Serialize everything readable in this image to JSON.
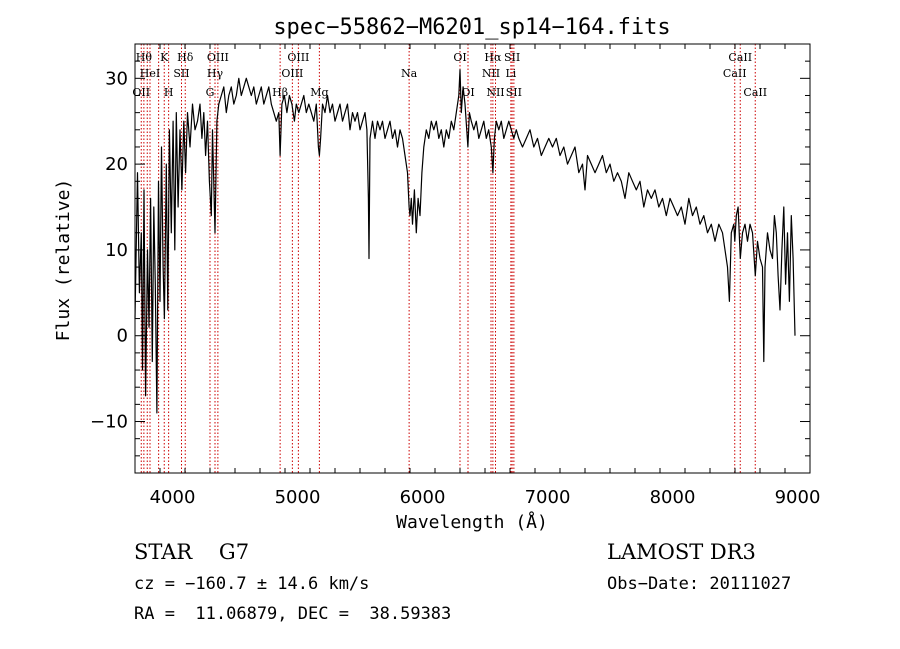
{
  "chart_data": {
    "type": "line",
    "title": "spec−55862−M6201_sp14−164.fits",
    "xlabel": "Wavelength (Å)",
    "ylabel": "Flux (relative)",
    "xlim": [
      3700,
      9100
    ],
    "ylim": [
      -16,
      34
    ],
    "xticks": [
      4000,
      5000,
      6000,
      7000,
      8000,
      9000
    ],
    "xtick_labels": [
      "4000",
      "5000",
      "6000",
      "7000",
      "8000",
      "9000"
    ],
    "yticks": [
      -10,
      0,
      10,
      20,
      30
    ],
    "ytick_labels": [
      "−10",
      "0",
      "10",
      "20",
      "30"
    ],
    "series": [
      {
        "name": "flux",
        "points": [
          [
            3700,
            2
          ],
          [
            3720,
            19
          ],
          [
            3735,
            5
          ],
          [
            3750,
            12
          ],
          [
            3760,
            -4
          ],
          [
            3772,
            17
          ],
          [
            3785,
            -7
          ],
          [
            3800,
            10
          ],
          [
            3812,
            1
          ],
          [
            3825,
            16
          ],
          [
            3838,
            -3
          ],
          [
            3850,
            15
          ],
          [
            3862,
            6
          ],
          [
            3875,
            -9
          ],
          [
            3888,
            18
          ],
          [
            3900,
            4
          ],
          [
            3912,
            22
          ],
          [
            3925,
            8
          ],
          [
            3935,
            2
          ],
          [
            3950,
            20
          ],
          [
            3962,
            3
          ],
          [
            3975,
            24
          ],
          [
            3990,
            12
          ],
          [
            4005,
            25
          ],
          [
            4018,
            10
          ],
          [
            4030,
            26
          ],
          [
            4045,
            15
          ],
          [
            4060,
            24
          ],
          [
            4075,
            17
          ],
          [
            4090,
            25
          ],
          [
            4105,
            19
          ],
          [
            4120,
            26
          ],
          [
            4140,
            22
          ],
          [
            4160,
            27
          ],
          [
            4180,
            24
          ],
          [
            4200,
            25
          ],
          [
            4220,
            27
          ],
          [
            4235,
            23
          ],
          [
            4250,
            26
          ],
          [
            4265,
            21
          ],
          [
            4280,
            25
          ],
          [
            4295,
            18
          ],
          [
            4310,
            14
          ],
          [
            4320,
            24
          ],
          [
            4340,
            12
          ],
          [
            4355,
            25
          ],
          [
            4370,
            27
          ],
          [
            4390,
            28
          ],
          [
            4410,
            29
          ],
          [
            4430,
            26
          ],
          [
            4450,
            28
          ],
          [
            4470,
            29
          ],
          [
            4490,
            27
          ],
          [
            4510,
            28
          ],
          [
            4530,
            30
          ],
          [
            4550,
            28
          ],
          [
            4570,
            29
          ],
          [
            4590,
            30
          ],
          [
            4610,
            29
          ],
          [
            4630,
            28
          ],
          [
            4650,
            29
          ],
          [
            4670,
            27
          ],
          [
            4690,
            28
          ],
          [
            4710,
            29
          ],
          [
            4730,
            27
          ],
          [
            4750,
            28
          ],
          [
            4770,
            29
          ],
          [
            4790,
            27
          ],
          [
            4810,
            26
          ],
          [
            4830,
            25
          ],
          [
            4850,
            26
          ],
          [
            4861,
            21
          ],
          [
            4875,
            27
          ],
          [
            4895,
            28
          ],
          [
            4915,
            26
          ],
          [
            4935,
            28
          ],
          [
            4955,
            27
          ],
          [
            4975,
            25
          ],
          [
            4990,
            27
          ],
          [
            5010,
            26
          ],
          [
            5030,
            27
          ],
          [
            5050,
            28
          ],
          [
            5070,
            26
          ],
          [
            5090,
            27
          ],
          [
            5110,
            26
          ],
          [
            5130,
            25
          ],
          [
            5150,
            27
          ],
          [
            5167,
            22
          ],
          [
            5175,
            21
          ],
          [
            5185,
            23
          ],
          [
            5200,
            27
          ],
          [
            5220,
            26
          ],
          [
            5240,
            28
          ],
          [
            5260,
            26
          ],
          [
            5280,
            27
          ],
          [
            5300,
            25
          ],
          [
            5320,
            26
          ],
          [
            5340,
            27
          ],
          [
            5360,
            25
          ],
          [
            5380,
            26
          ],
          [
            5400,
            27
          ],
          [
            5420,
            24
          ],
          [
            5440,
            26
          ],
          [
            5460,
            25
          ],
          [
            5480,
            26
          ],
          [
            5500,
            24
          ],
          [
            5520,
            25
          ],
          [
            5540,
            26
          ],
          [
            5555,
            24
          ],
          [
            5567,
            16
          ],
          [
            5572,
            9
          ],
          [
            5580,
            23
          ],
          [
            5600,
            25
          ],
          [
            5620,
            23
          ],
          [
            5640,
            25
          ],
          [
            5660,
            24
          ],
          [
            5680,
            25
          ],
          [
            5700,
            23
          ],
          [
            5720,
            24
          ],
          [
            5740,
            25
          ],
          [
            5760,
            23
          ],
          [
            5780,
            24
          ],
          [
            5800,
            22
          ],
          [
            5820,
            24
          ],
          [
            5840,
            23
          ],
          [
            5860,
            21
          ],
          [
            5880,
            19
          ],
          [
            5893,
            15
          ],
          [
            5900,
            14
          ],
          [
            5910,
            16
          ],
          [
            5920,
            13
          ],
          [
            5935,
            17
          ],
          [
            5950,
            12
          ],
          [
            5965,
            16
          ],
          [
            5980,
            14
          ],
          [
            5995,
            19
          ],
          [
            6010,
            22
          ],
          [
            6030,
            24
          ],
          [
            6050,
            23
          ],
          [
            6070,
            25
          ],
          [
            6090,
            24
          ],
          [
            6110,
            25
          ],
          [
            6130,
            23
          ],
          [
            6150,
            24
          ],
          [
            6170,
            22
          ],
          [
            6190,
            24
          ],
          [
            6210,
            23
          ],
          [
            6230,
            25
          ],
          [
            6250,
            24
          ],
          [
            6270,
            26
          ],
          [
            6290,
            28
          ],
          [
            6300,
            31
          ],
          [
            6310,
            26
          ],
          [
            6325,
            29
          ],
          [
            6340,
            27
          ],
          [
            6363,
            22
          ],
          [
            6375,
            26
          ],
          [
            6390,
            25
          ],
          [
            6410,
            24
          ],
          [
            6430,
            25
          ],
          [
            6450,
            23
          ],
          [
            6470,
            24
          ],
          [
            6490,
            25
          ],
          [
            6510,
            23
          ],
          [
            6530,
            24
          ],
          [
            6550,
            22
          ],
          [
            6563,
            19
          ],
          [
            6575,
            23
          ],
          [
            6590,
            25
          ],
          [
            6610,
            24
          ],
          [
            6630,
            25
          ],
          [
            6650,
            23
          ],
          [
            6670,
            24
          ],
          [
            6690,
            25
          ],
          [
            6710,
            24
          ],
          [
            6730,
            23
          ],
          [
            6750,
            24
          ],
          [
            6770,
            23
          ],
          [
            6800,
            22
          ],
          [
            6830,
            23
          ],
          [
            6860,
            24
          ],
          [
            6890,
            22
          ],
          [
            6920,
            23
          ],
          [
            6950,
            21
          ],
          [
            6980,
            22
          ],
          [
            7010,
            23
          ],
          [
            7040,
            22
          ],
          [
            7070,
            23
          ],
          [
            7100,
            21
          ],
          [
            7130,
            22
          ],
          [
            7160,
            20
          ],
          [
            7190,
            21
          ],
          [
            7220,
            22
          ],
          [
            7250,
            19
          ],
          [
            7280,
            20
          ],
          [
            7300,
            17
          ],
          [
            7320,
            21
          ],
          [
            7350,
            20
          ],
          [
            7380,
            19
          ],
          [
            7410,
            20
          ],
          [
            7440,
            21
          ],
          [
            7470,
            19
          ],
          [
            7500,
            20
          ],
          [
            7530,
            18
          ],
          [
            7560,
            19
          ],
          [
            7590,
            18
          ],
          [
            7620,
            16
          ],
          [
            7650,
            19
          ],
          [
            7680,
            18
          ],
          [
            7710,
            17
          ],
          [
            7740,
            18
          ],
          [
            7770,
            15
          ],
          [
            7800,
            17
          ],
          [
            7830,
            16
          ],
          [
            7860,
            17
          ],
          [
            7890,
            15
          ],
          [
            7920,
            16
          ],
          [
            7950,
            14
          ],
          [
            7980,
            16
          ],
          [
            8010,
            15
          ],
          [
            8040,
            14
          ],
          [
            8070,
            15
          ],
          [
            8100,
            13
          ],
          [
            8130,
            16
          ],
          [
            8160,
            14
          ],
          [
            8190,
            15
          ],
          [
            8220,
            13
          ],
          [
            8250,
            14
          ],
          [
            8280,
            12
          ],
          [
            8310,
            13
          ],
          [
            8340,
            11
          ],
          [
            8370,
            13
          ],
          [
            8400,
            12
          ],
          [
            8420,
            10
          ],
          [
            8440,
            8
          ],
          [
            8455,
            4
          ],
          [
            8470,
            12
          ],
          [
            8490,
            13
          ],
          [
            8498,
            11
          ],
          [
            8510,
            14
          ],
          [
            8525,
            15
          ],
          [
            8542,
            9
          ],
          [
            8560,
            12
          ],
          [
            8580,
            13
          ],
          [
            8600,
            11
          ],
          [
            8620,
            13
          ],
          [
            8640,
            12
          ],
          [
            8662,
            7
          ],
          [
            8680,
            11
          ],
          [
            8700,
            9
          ],
          [
            8720,
            8
          ],
          [
            8730,
            -3
          ],
          [
            8740,
            8
          ],
          [
            8760,
            12
          ],
          [
            8780,
            10
          ],
          [
            8800,
            9
          ],
          [
            8815,
            14
          ],
          [
            8830,
            12
          ],
          [
            8845,
            7
          ],
          [
            8860,
            3
          ],
          [
            8875,
            10
          ],
          [
            8890,
            15
          ],
          [
            8905,
            6
          ],
          [
            8920,
            12
          ],
          [
            8935,
            4
          ],
          [
            8950,
            14
          ],
          [
            8965,
            9
          ],
          [
            8980,
            0
          ]
        ]
      }
    ],
    "lines": [
      {
        "wave": 3750,
        "label": "OII",
        "tier": 3
      },
      {
        "wave": 3771,
        "label": "Hθ",
        "tier": 1
      },
      {
        "wave": 3798,
        "label": "",
        "tier": 0
      },
      {
        "wave": 3820,
        "label": "HeI",
        "tier": 2
      },
      {
        "wave": 3889,
        "label": "",
        "tier": 0
      },
      {
        "wave": 3934,
        "label": "K",
        "tier": 1
      },
      {
        "wave": 3969,
        "label": "H",
        "tier": 3
      },
      {
        "wave": 4072,
        "label": "SII",
        "tier": 2
      },
      {
        "wave": 4102,
        "label": "Hδ",
        "tier": 1
      },
      {
        "wave": 4300,
        "label": "G",
        "tier": 3
      },
      {
        "wave": 4340,
        "label": "Hγ",
        "tier": 2
      },
      {
        "wave": 4363,
        "label": "OIII",
        "tier": 1
      },
      {
        "wave": 4861,
        "label": "Hβ",
        "tier": 3
      },
      {
        "wave": 4959,
        "label": "OIII",
        "tier": 2
      },
      {
        "wave": 5007,
        "label": "OIII",
        "tier": 1
      },
      {
        "wave": 5175,
        "label": "Mg",
        "tier": 3
      },
      {
        "wave": 5893,
        "label": "Na",
        "tier": 2
      },
      {
        "wave": 6300,
        "label": "OI",
        "tier": 1
      },
      {
        "wave": 6364,
        "label": "OI",
        "tier": 3
      },
      {
        "wave": 6548,
        "label": "NII",
        "tier": 2
      },
      {
        "wave": 6563,
        "label": "Hα",
        "tier": 1
      },
      {
        "wave": 6584,
        "label": "NII",
        "tier": 3
      },
      {
        "wave": 6707,
        "label": "Li",
        "tier": 2
      },
      {
        "wave": 6717,
        "label": "SII",
        "tier": 1
      },
      {
        "wave": 6731,
        "label": "SII",
        "tier": 3
      },
      {
        "wave": 8498,
        "label": "CaII",
        "tier": 2
      },
      {
        "wave": 8542,
        "label": "CaII",
        "tier": 1
      },
      {
        "wave": 8662,
        "label": "CaII",
        "tier": 3
      }
    ]
  },
  "info": {
    "class_line": "STAR    G7",
    "cz_line": "cz = −160.7 ± 14.6 km/s",
    "radec_line": "RA =  11.06879, DEC =  38.59383",
    "survey": "LAMOST DR3",
    "obs_date": "Obs−Date: 20111027"
  },
  "colors": {
    "axis": "#000000",
    "spectrum": "#000000",
    "marker_line": "#cc0000"
  }
}
